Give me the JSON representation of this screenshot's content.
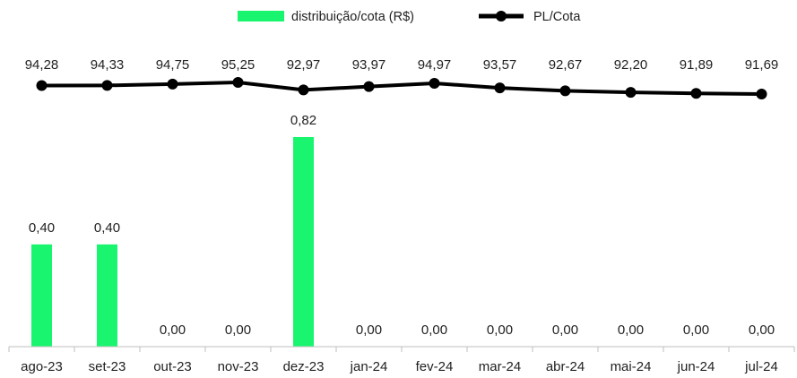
{
  "chart_data": {
    "type": "bar+line",
    "title": "",
    "xlabel": "",
    "ylabel": "",
    "categories": [
      "ago-23",
      "set-23",
      "out-23",
      "nov-23",
      "dez-23",
      "jan-24",
      "fev-24",
      "mar-24",
      "abr-24",
      "mai-24",
      "jun-24",
      "jul-24"
    ],
    "series": [
      {
        "name": "distribuição/cota (R$)",
        "type": "bar",
        "color": "#19F56E",
        "values": [
          0.4,
          0.4,
          0.0,
          0.0,
          0.82,
          0.0,
          0.0,
          0.0,
          0.0,
          0.0,
          0.0,
          0.0
        ],
        "labels": [
          "0,40",
          "0,40",
          "0,00",
          "0,00",
          "0,82",
          "0,00",
          "0,00",
          "0,00",
          "0,00",
          "0,00",
          "0,00",
          "0,00"
        ]
      },
      {
        "name": "PL/Cota",
        "type": "line",
        "color": "#000000",
        "values": [
          94.28,
          94.33,
          94.75,
          95.25,
          92.97,
          93.97,
          94.97,
          93.57,
          92.67,
          92.2,
          91.89,
          91.69
        ],
        "labels": [
          "94,28",
          "94,33",
          "94,75",
          "95,25",
          "92,97",
          "93,97",
          "94,97",
          "93,57",
          "92,67",
          "92,20",
          "91,89",
          "91,69"
        ]
      }
    ],
    "legend_position": "top-center",
    "grid": false
  }
}
